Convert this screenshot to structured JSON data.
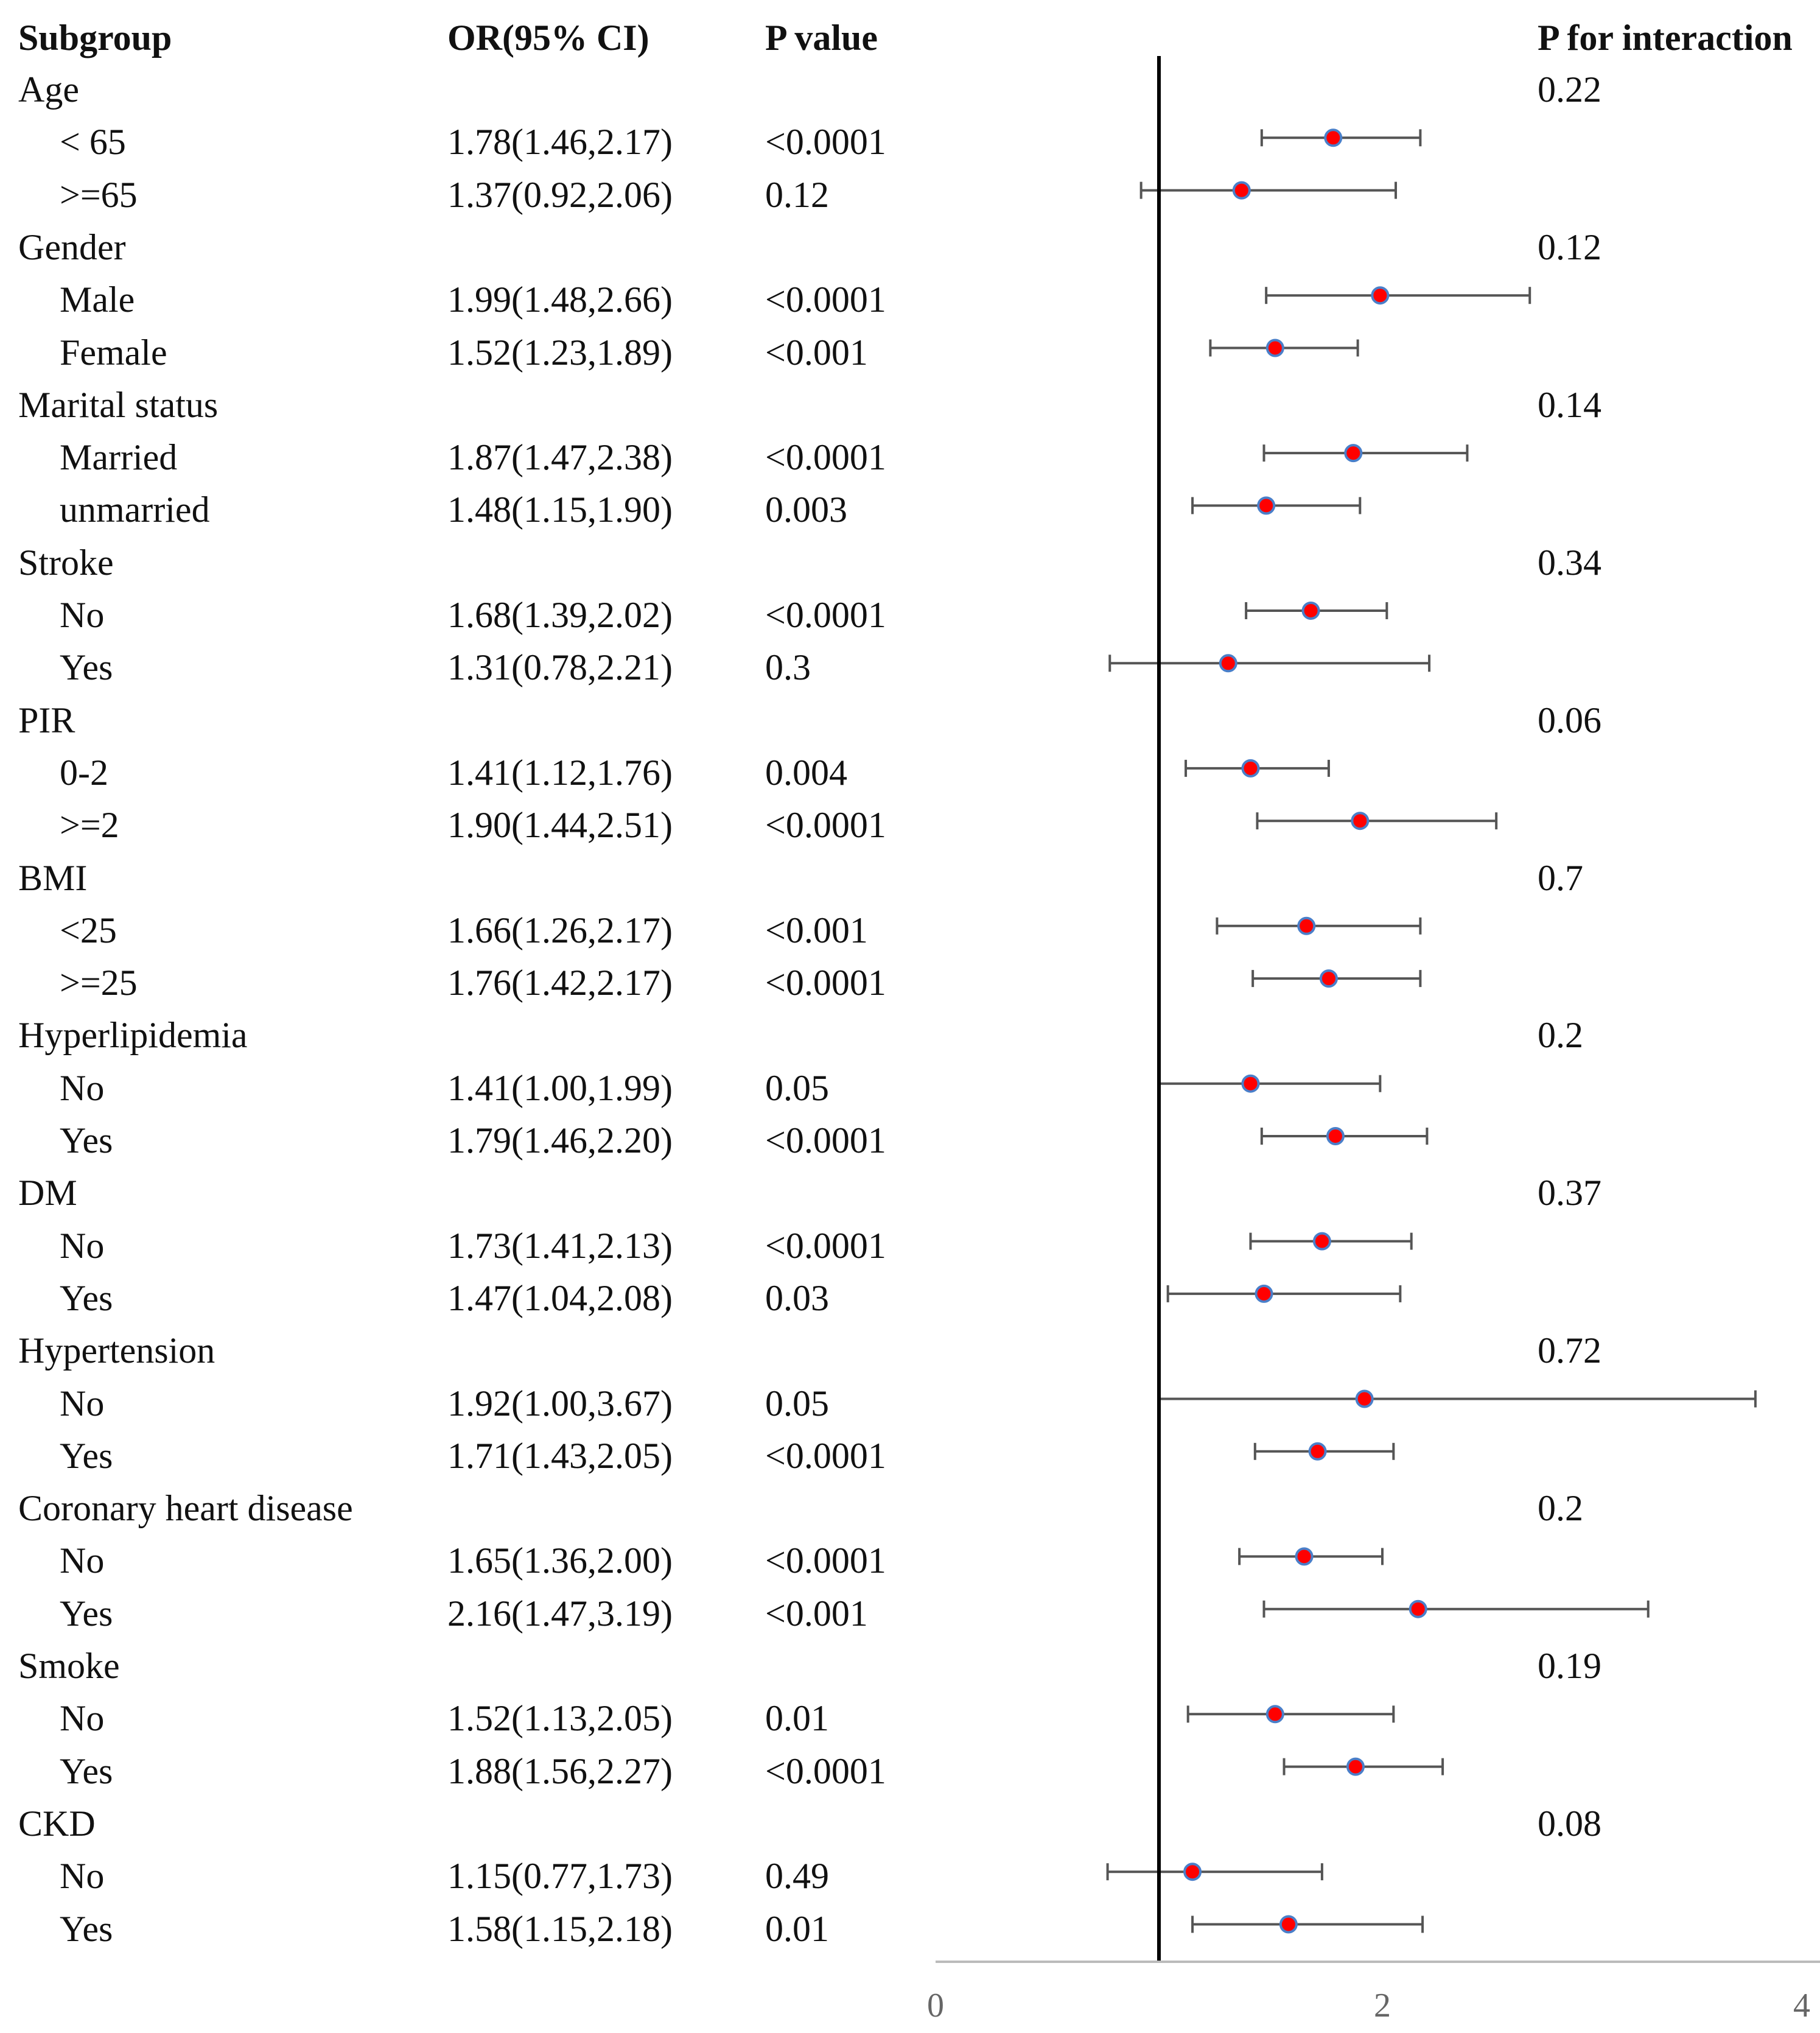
{
  "headers": {
    "subgroup": "Subgroup",
    "or_ci": "OR(95%  CI)",
    "p_value": "P  value",
    "p_interaction": "P for interaction"
  },
  "chart_data": {
    "type": "forest",
    "reference_line": 1,
    "x_axis": {
      "range": [
        0,
        4
      ],
      "ticks": [
        "0",
        "2",
        "4"
      ]
    },
    "point_color": "#ff0000",
    "point_edge_color": "#4a7fc9",
    "groups": [
      {
        "name": "Age",
        "p_interaction": "0.22",
        "rows": [
          {
            "label": "< 65",
            "or_text": "1.78(1.46,2.17)",
            "p": "<0.0001",
            "or": 1.78,
            "lo": 1.46,
            "hi": 2.17
          },
          {
            "label": ">=65",
            "or_text": "1.37(0.92,2.06)",
            "p": "0.12",
            "or": 1.37,
            "lo": 0.92,
            "hi": 2.06
          }
        ]
      },
      {
        "name": "Gender",
        "p_interaction": "0.12",
        "rows": [
          {
            "label": "Male",
            "or_text": "1.99(1.48,2.66)",
            "p": "<0.0001",
            "or": 1.99,
            "lo": 1.48,
            "hi": 2.66
          },
          {
            "label": "Female",
            "or_text": "1.52(1.23,1.89)",
            "p": "<0.001",
            "or": 1.52,
            "lo": 1.23,
            "hi": 1.89
          }
        ]
      },
      {
        "name": "Marital status",
        "p_interaction": "0.14",
        "rows": [
          {
            "label": "Married",
            "or_text": "1.87(1.47,2.38)",
            "p": "<0.0001",
            "or": 1.87,
            "lo": 1.47,
            "hi": 2.38
          },
          {
            "label": "unmarried",
            "or_text": "1.48(1.15,1.90)",
            "p": "0.003",
            "or": 1.48,
            "lo": 1.15,
            "hi": 1.9
          }
        ]
      },
      {
        "name": "Stroke",
        "p_interaction": "0.34",
        "rows": [
          {
            "label": "No",
            "or_text": "1.68(1.39,2.02)",
            "p": "<0.0001",
            "or": 1.68,
            "lo": 1.39,
            "hi": 2.02
          },
          {
            "label": "Yes",
            "or_text": "1.31(0.78,2.21)",
            "p": "0.3",
            "or": 1.31,
            "lo": 0.78,
            "hi": 2.21
          }
        ]
      },
      {
        "name": "PIR",
        "p_interaction": "0.06",
        "rows": [
          {
            "label": "0-2",
            "or_text": "1.41(1.12,1.76)",
            "p": "0.004",
            "or": 1.41,
            "lo": 1.12,
            "hi": 1.76
          },
          {
            "label": ">=2",
            "or_text": "1.90(1.44,2.51)",
            "p": "<0.0001",
            "or": 1.9,
            "lo": 1.44,
            "hi": 2.51
          }
        ]
      },
      {
        "name": "BMI",
        "p_interaction": "0.7",
        "rows": [
          {
            "label": "<25",
            "or_text": "1.66(1.26,2.17)",
            "p": "<0.001",
            "or": 1.66,
            "lo": 1.26,
            "hi": 2.17
          },
          {
            "label": ">=25",
            "or_text": "1.76(1.42,2.17)",
            "p": "<0.0001",
            "or": 1.76,
            "lo": 1.42,
            "hi": 2.17
          }
        ]
      },
      {
        "name": "Hyperlipidemia",
        "p_interaction": "0.2",
        "rows": [
          {
            "label": "No",
            "or_text": "1.41(1.00,1.99)",
            "p": "0.05",
            "or": 1.41,
            "lo": 1.0,
            "hi": 1.99
          },
          {
            "label": "Yes",
            "or_text": "1.79(1.46,2.20)",
            "p": "<0.0001",
            "or": 1.79,
            "lo": 1.46,
            "hi": 2.2
          }
        ]
      },
      {
        "name": "DM",
        "p_interaction": "0.37",
        "rows": [
          {
            "label": "No",
            "or_text": "1.73(1.41,2.13)",
            "p": "<0.0001",
            "or": 1.73,
            "lo": 1.41,
            "hi": 2.13
          },
          {
            "label": "Yes",
            "or_text": "1.47(1.04,2.08)",
            "p": "0.03",
            "or": 1.47,
            "lo": 1.04,
            "hi": 2.08
          }
        ]
      },
      {
        "name": "Hypertension",
        "p_interaction": "0.72",
        "rows": [
          {
            "label": "No",
            "or_text": "1.92(1.00,3.67)",
            "p": "0.05",
            "or": 1.92,
            "lo": 1.0,
            "hi": 3.67
          },
          {
            "label": "Yes",
            "or_text": "1.71(1.43,2.05)",
            "p": "<0.0001",
            "or": 1.71,
            "lo": 1.43,
            "hi": 2.05
          }
        ]
      },
      {
        "name": "Coronary heart disease",
        "p_interaction": "0.2",
        "rows": [
          {
            "label": "No",
            "or_text": "1.65(1.36,2.00)",
            "p": "<0.0001",
            "or": 1.65,
            "lo": 1.36,
            "hi": 2.0
          },
          {
            "label": "Yes",
            "or_text": "2.16(1.47,3.19)",
            "p": "<0.001",
            "or": 2.16,
            "lo": 1.47,
            "hi": 3.19
          }
        ]
      },
      {
        "name": "Smoke",
        "p_interaction": "0.19",
        "rows": [
          {
            "label": "No",
            "or_text": "1.52(1.13,2.05)",
            "p": "0.01",
            "or": 1.52,
            "lo": 1.13,
            "hi": 2.05
          },
          {
            "label": "Yes",
            "or_text": "1.88(1.56,2.27)",
            "p": "<0.0001",
            "or": 1.88,
            "lo": 1.56,
            "hi": 2.27
          }
        ]
      },
      {
        "name": "CKD",
        "p_interaction": "0.08",
        "rows": [
          {
            "label": "No",
            "or_text": "1.15(0.77,1.73)",
            "p": "0.49",
            "or": 1.15,
            "lo": 0.77,
            "hi": 1.73
          },
          {
            "label": "Yes",
            "or_text": "1.58(1.15,2.18)",
            "p": "0.01",
            "or": 1.58,
            "lo": 1.15,
            "hi": 2.18
          }
        ]
      }
    ]
  }
}
